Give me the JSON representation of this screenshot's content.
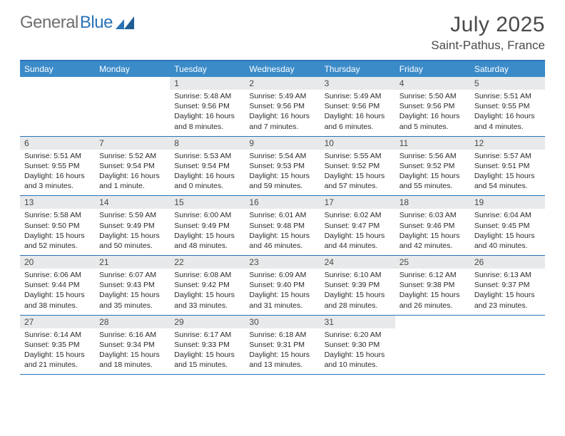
{
  "brand": {
    "part1": "General",
    "part2": "Blue"
  },
  "title": "July 2025",
  "location": "Saint-Pathus, France",
  "colors": {
    "accent": "#2a73b8",
    "header_bg": "#3b8bc9",
    "daybar_bg": "#e7e9ea",
    "text_dark": "#2b2b2b",
    "text_mid": "#4a4a4a"
  },
  "weekdays": [
    "Sunday",
    "Monday",
    "Tuesday",
    "Wednesday",
    "Thursday",
    "Friday",
    "Saturday"
  ],
  "weeks": [
    [
      null,
      null,
      {
        "n": "1",
        "sunrise": "5:48 AM",
        "sunset": "9:56 PM",
        "daylight": "16 hours and 8 minutes."
      },
      {
        "n": "2",
        "sunrise": "5:49 AM",
        "sunset": "9:56 PM",
        "daylight": "16 hours and 7 minutes."
      },
      {
        "n": "3",
        "sunrise": "5:49 AM",
        "sunset": "9:56 PM",
        "daylight": "16 hours and 6 minutes."
      },
      {
        "n": "4",
        "sunrise": "5:50 AM",
        "sunset": "9:56 PM",
        "daylight": "16 hours and 5 minutes."
      },
      {
        "n": "5",
        "sunrise": "5:51 AM",
        "sunset": "9:55 PM",
        "daylight": "16 hours and 4 minutes."
      }
    ],
    [
      {
        "n": "6",
        "sunrise": "5:51 AM",
        "sunset": "9:55 PM",
        "daylight": "16 hours and 3 minutes."
      },
      {
        "n": "7",
        "sunrise": "5:52 AM",
        "sunset": "9:54 PM",
        "daylight": "16 hours and 1 minute."
      },
      {
        "n": "8",
        "sunrise": "5:53 AM",
        "sunset": "9:54 PM",
        "daylight": "16 hours and 0 minutes."
      },
      {
        "n": "9",
        "sunrise": "5:54 AM",
        "sunset": "9:53 PM",
        "daylight": "15 hours and 59 minutes."
      },
      {
        "n": "10",
        "sunrise": "5:55 AM",
        "sunset": "9:52 PM",
        "daylight": "15 hours and 57 minutes."
      },
      {
        "n": "11",
        "sunrise": "5:56 AM",
        "sunset": "9:52 PM",
        "daylight": "15 hours and 55 minutes."
      },
      {
        "n": "12",
        "sunrise": "5:57 AM",
        "sunset": "9:51 PM",
        "daylight": "15 hours and 54 minutes."
      }
    ],
    [
      {
        "n": "13",
        "sunrise": "5:58 AM",
        "sunset": "9:50 PM",
        "daylight": "15 hours and 52 minutes."
      },
      {
        "n": "14",
        "sunrise": "5:59 AM",
        "sunset": "9:49 PM",
        "daylight": "15 hours and 50 minutes."
      },
      {
        "n": "15",
        "sunrise": "6:00 AM",
        "sunset": "9:49 PM",
        "daylight": "15 hours and 48 minutes."
      },
      {
        "n": "16",
        "sunrise": "6:01 AM",
        "sunset": "9:48 PM",
        "daylight": "15 hours and 46 minutes."
      },
      {
        "n": "17",
        "sunrise": "6:02 AM",
        "sunset": "9:47 PM",
        "daylight": "15 hours and 44 minutes."
      },
      {
        "n": "18",
        "sunrise": "6:03 AM",
        "sunset": "9:46 PM",
        "daylight": "15 hours and 42 minutes."
      },
      {
        "n": "19",
        "sunrise": "6:04 AM",
        "sunset": "9:45 PM",
        "daylight": "15 hours and 40 minutes."
      }
    ],
    [
      {
        "n": "20",
        "sunrise": "6:06 AM",
        "sunset": "9:44 PM",
        "daylight": "15 hours and 38 minutes."
      },
      {
        "n": "21",
        "sunrise": "6:07 AM",
        "sunset": "9:43 PM",
        "daylight": "15 hours and 35 minutes."
      },
      {
        "n": "22",
        "sunrise": "6:08 AM",
        "sunset": "9:42 PM",
        "daylight": "15 hours and 33 minutes."
      },
      {
        "n": "23",
        "sunrise": "6:09 AM",
        "sunset": "9:40 PM",
        "daylight": "15 hours and 31 minutes."
      },
      {
        "n": "24",
        "sunrise": "6:10 AM",
        "sunset": "9:39 PM",
        "daylight": "15 hours and 28 minutes."
      },
      {
        "n": "25",
        "sunrise": "6:12 AM",
        "sunset": "9:38 PM",
        "daylight": "15 hours and 26 minutes."
      },
      {
        "n": "26",
        "sunrise": "6:13 AM",
        "sunset": "9:37 PM",
        "daylight": "15 hours and 23 minutes."
      }
    ],
    [
      {
        "n": "27",
        "sunrise": "6:14 AM",
        "sunset": "9:35 PM",
        "daylight": "15 hours and 21 minutes."
      },
      {
        "n": "28",
        "sunrise": "6:16 AM",
        "sunset": "9:34 PM",
        "daylight": "15 hours and 18 minutes."
      },
      {
        "n": "29",
        "sunrise": "6:17 AM",
        "sunset": "9:33 PM",
        "daylight": "15 hours and 15 minutes."
      },
      {
        "n": "30",
        "sunrise": "6:18 AM",
        "sunset": "9:31 PM",
        "daylight": "15 hours and 13 minutes."
      },
      {
        "n": "31",
        "sunrise": "6:20 AM",
        "sunset": "9:30 PM",
        "daylight": "15 hours and 10 minutes."
      },
      null,
      null
    ]
  ]
}
